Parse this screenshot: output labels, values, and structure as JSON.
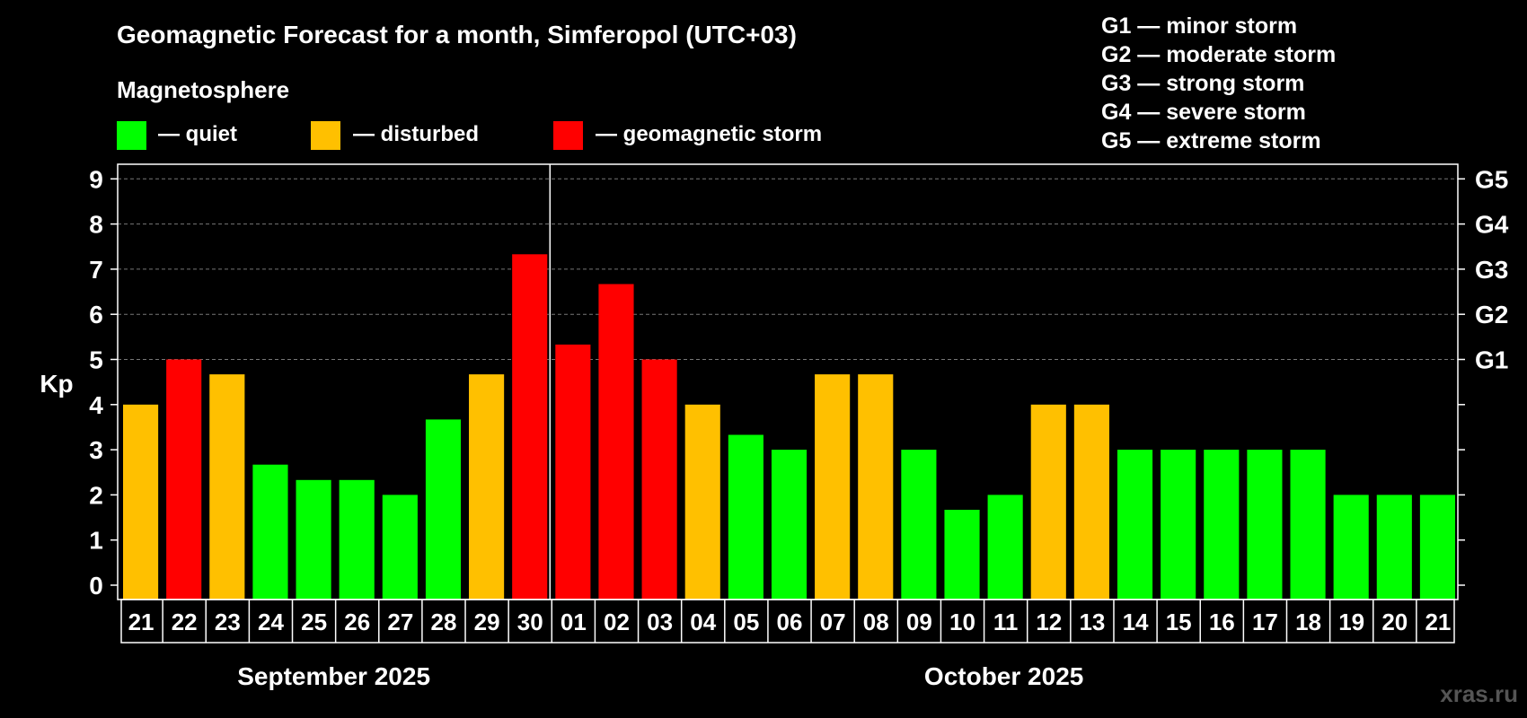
{
  "chart_data": {
    "type": "bar",
    "title": "Geomagnetic Forecast for a month, Simferopol (UTC+03)",
    "subtitle": "Magnetosphere",
    "ylabel": "Kp",
    "ylim": [
      0,
      9
    ],
    "yticks": [
      "0",
      "1",
      "2",
      "3",
      "4",
      "5",
      "6",
      "7",
      "8",
      "9"
    ],
    "right_axis_labels": [
      {
        "kp": 5,
        "label": "G1"
      },
      {
        "kp": 6,
        "label": "G2"
      },
      {
        "kp": 7,
        "label": "G3"
      },
      {
        "kp": 8,
        "label": "G4"
      },
      {
        "kp": 9,
        "label": "G5"
      }
    ],
    "grid": "horizontal dashed at Kp 5-9",
    "legend": [
      {
        "label": "— quiet",
        "color": "#00ff00",
        "status": "quiet"
      },
      {
        "label": "— disturbed",
        "color": "#ffc000",
        "status": "disturbed"
      },
      {
        "label": "— geomagnetic storm",
        "color": "#ff0000",
        "status": "storm"
      }
    ],
    "storm_scale": [
      "G1 — minor storm",
      "G2 — moderate storm",
      "G3 — strong storm",
      "G4 — severe storm",
      "G5 — extreme storm"
    ],
    "categories": [
      "21",
      "22",
      "23",
      "24",
      "25",
      "26",
      "27",
      "28",
      "29",
      "30",
      "01",
      "02",
      "03",
      "04",
      "05",
      "06",
      "07",
      "08",
      "09",
      "10",
      "11",
      "12",
      "13",
      "14",
      "15",
      "16",
      "17",
      "18",
      "19",
      "20",
      "21"
    ],
    "values": [
      4,
      5,
      4.67,
      2.67,
      2.33,
      2.33,
      2,
      3.67,
      4.67,
      7.33,
      5.33,
      6.67,
      5,
      4,
      3.33,
      3,
      4.67,
      4.67,
      3,
      1.67,
      2,
      4,
      4,
      3,
      3,
      3,
      3,
      3,
      2,
      2,
      2
    ],
    "status": [
      "disturbed",
      "storm",
      "disturbed",
      "quiet",
      "quiet",
      "quiet",
      "quiet",
      "quiet",
      "disturbed",
      "storm",
      "storm",
      "storm",
      "storm",
      "disturbed",
      "quiet",
      "quiet",
      "disturbed",
      "disturbed",
      "quiet",
      "quiet",
      "quiet",
      "disturbed",
      "disturbed",
      "quiet",
      "quiet",
      "quiet",
      "quiet",
      "quiet",
      "quiet",
      "quiet",
      "quiet"
    ],
    "months": [
      {
        "label": "September 2025",
        "start_index": 0,
        "end_index": 9
      },
      {
        "label": "October 2025",
        "start_index": 10,
        "end_index": 30
      }
    ],
    "month_divider_after_index": 9
  },
  "watermark": "xras.ru"
}
